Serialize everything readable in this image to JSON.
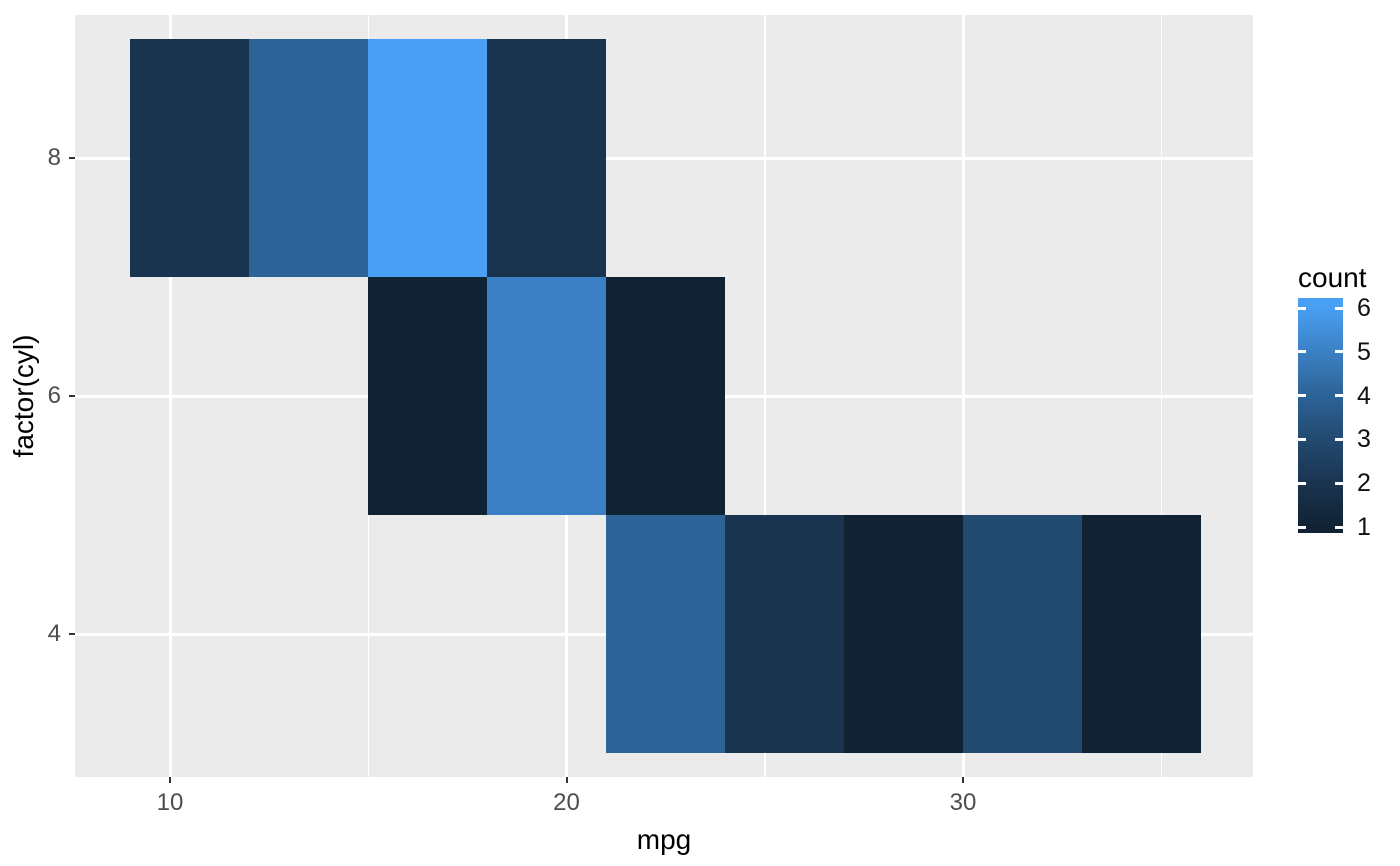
{
  "chart_data": {
    "type": "heatmap",
    "xlabel": "mpg",
    "ylabel": "factor(cyl)",
    "legend_title": "count",
    "x_axis_ticks": [
      10,
      20,
      30
    ],
    "x_axis_minor": [
      15,
      25,
      35
    ],
    "y_categories": [
      "4",
      "6",
      "8"
    ],
    "x_range": [
      7.65,
      37.35
    ],
    "binwidth": 3,
    "legend_ticks": [
      6,
      5,
      4,
      3,
      2,
      1
    ],
    "panel_bg": "#EBEBEB",
    "grid_color": "#FFFFFF",
    "palette": {
      "1": "#112234",
      "2": "#1a3450",
      "3": "#234a70",
      "4": "#2d6397",
      "5": "#3b80c4",
      "6": "#489ff3"
    },
    "series": [
      {
        "cyl": "8",
        "bins": [
          {
            "mpg_start": 9,
            "mpg_end": 12,
            "count": 2
          },
          {
            "mpg_start": 12,
            "mpg_end": 15,
            "count": 4
          },
          {
            "mpg_start": 15,
            "mpg_end": 18,
            "count": 6
          },
          {
            "mpg_start": 18,
            "mpg_end": 21,
            "count": 2
          }
        ]
      },
      {
        "cyl": "6",
        "bins": [
          {
            "mpg_start": 15,
            "mpg_end": 18,
            "count": 1
          },
          {
            "mpg_start": 18,
            "mpg_end": 21,
            "count": 5
          },
          {
            "mpg_start": 21,
            "mpg_end": 24,
            "count": 1
          }
        ]
      },
      {
        "cyl": "4",
        "bins": [
          {
            "mpg_start": 21,
            "mpg_end": 24,
            "count": 4
          },
          {
            "mpg_start": 24,
            "mpg_end": 27,
            "count": 2
          },
          {
            "mpg_start": 27,
            "mpg_end": 30,
            "count": 1
          },
          {
            "mpg_start": 30,
            "mpg_end": 33,
            "count": 3
          },
          {
            "mpg_start": 33,
            "mpg_end": 36,
            "count": 1
          }
        ]
      }
    ]
  }
}
